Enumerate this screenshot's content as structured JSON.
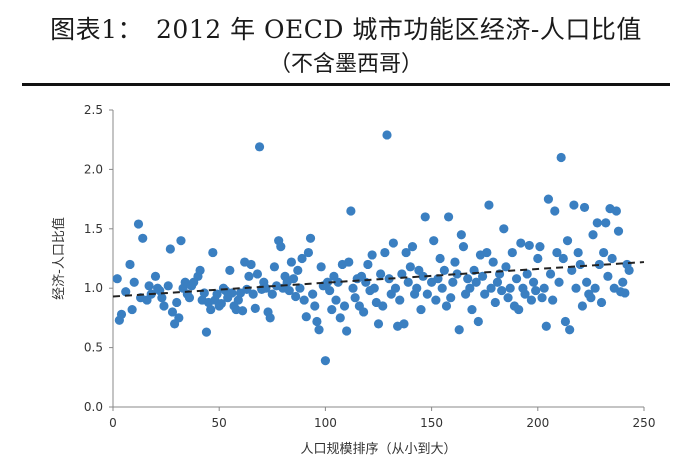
{
  "header": {
    "title": "图表1：　2012 年 OECD 城市功能区经济-人口比值",
    "subtitle": "（不含墨西哥）"
  },
  "chart_data": {
    "type": "scatter",
    "xlabel": "人口规模排序（从小到大）",
    "ylabel": "经济-人口比值",
    "xlim": [
      0,
      250
    ],
    "ylim": [
      0,
      2.5
    ],
    "xticks": [
      "0",
      "50",
      "100",
      "150",
      "200",
      "250"
    ],
    "yticks": [
      "0.0",
      "0.5",
      "1.0",
      "1.5",
      "2.0",
      "2.5"
    ],
    "grid": false,
    "legend": "none",
    "colors": {
      "points": "#3a7fc1",
      "trend": "#222222",
      "axis": "#888888"
    },
    "trendline": {
      "style": "dashed",
      "x": [
        0,
        250
      ],
      "y": [
        0.93,
        1.22
      ]
    },
    "points": [
      [
        2,
        1.08
      ],
      [
        3,
        0.73
      ],
      [
        4,
        0.78
      ],
      [
        6,
        0.97
      ],
      [
        8,
        1.2
      ],
      [
        9,
        0.82
      ],
      [
        10,
        1.05
      ],
      [
        12,
        1.54
      ],
      [
        13,
        0.92
      ],
      [
        14,
        1.42
      ],
      [
        16,
        0.9
      ],
      [
        17,
        1.02
      ],
      [
        18,
        0.95
      ],
      [
        20,
        1.1
      ],
      [
        21,
        1.0
      ],
      [
        22,
        0.98
      ],
      [
        23,
        0.92
      ],
      [
        24,
        0.85
      ],
      [
        26,
        1.02
      ],
      [
        27,
        1.33
      ],
      [
        28,
        0.8
      ],
      [
        29,
        0.7
      ],
      [
        30,
        0.88
      ],
      [
        31,
        0.75
      ],
      [
        32,
        1.4
      ],
      [
        33,
        1.0
      ],
      [
        34,
        1.05
      ],
      [
        35,
        0.95
      ],
      [
        36,
        0.92
      ],
      [
        37,
        1.02
      ],
      [
        38,
        1.05
      ],
      [
        40,
        1.1
      ],
      [
        41,
        1.15
      ],
      [
        42,
        0.9
      ],
      [
        43,
        0.96
      ],
      [
        44,
        0.63
      ],
      [
        45,
        0.88
      ],
      [
        46,
        0.82
      ],
      [
        47,
        1.3
      ],
      [
        48,
        0.9
      ],
      [
        49,
        0.95
      ],
      [
        50,
        0.85
      ],
      [
        51,
        0.87
      ],
      [
        52,
        1.0
      ],
      [
        53,
        0.98
      ],
      [
        54,
        0.92
      ],
      [
        55,
        1.15
      ],
      [
        56,
        0.96
      ],
      [
        57,
        0.85
      ],
      [
        58,
        0.82
      ],
      [
        59,
        0.9
      ],
      [
        60,
        0.96
      ],
      [
        61,
        0.81
      ],
      [
        62,
        1.22
      ],
      [
        63,
        0.99
      ],
      [
        64,
        1.1
      ],
      [
        65,
        1.2
      ],
      [
        66,
        0.95
      ],
      [
        67,
        0.83
      ],
      [
        68,
        1.12
      ],
      [
        69,
        2.19
      ],
      [
        70,
        0.99
      ],
      [
        71,
        1.05
      ],
      [
        72,
        1.0
      ],
      [
        73,
        0.8
      ],
      [
        74,
        0.75
      ],
      [
        75,
        0.95
      ],
      [
        76,
        1.18
      ],
      [
        77,
        1.02
      ],
      [
        78,
        1.4
      ],
      [
        79,
        1.35
      ],
      [
        80,
        1.0
      ],
      [
        81,
        1.1
      ],
      [
        82,
        1.05
      ],
      [
        83,
        0.98
      ],
      [
        84,
        1.22
      ],
      [
        85,
        1.08
      ],
      [
        86,
        0.93
      ],
      [
        87,
        1.15
      ],
      [
        88,
        1.0
      ],
      [
        89,
        1.25
      ],
      [
        90,
        0.9
      ],
      [
        91,
        0.76
      ],
      [
        92,
        1.3
      ],
      [
        93,
        1.42
      ],
      [
        94,
        0.95
      ],
      [
        95,
        0.85
      ],
      [
        96,
        0.72
      ],
      [
        97,
        0.65
      ],
      [
        98,
        1.18
      ],
      [
        99,
        1.02
      ],
      [
        100,
        0.39
      ],
      [
        101,
        1.05
      ],
      [
        102,
        0.98
      ],
      [
        103,
        0.82
      ],
      [
        104,
        1.1
      ],
      [
        105,
        0.9
      ],
      [
        106,
        1.05
      ],
      [
        107,
        0.75
      ],
      [
        108,
        1.2
      ],
      [
        109,
        0.85
      ],
      [
        110,
        0.64
      ],
      [
        111,
        1.22
      ],
      [
        112,
        1.65
      ],
      [
        113,
        1.0
      ],
      [
        114,
        0.92
      ],
      [
        115,
        1.08
      ],
      [
        116,
        0.85
      ],
      [
        117,
        1.1
      ],
      [
        118,
        0.8
      ],
      [
        119,
        1.05
      ],
      [
        120,
        1.2
      ],
      [
        121,
        0.98
      ],
      [
        122,
        1.28
      ],
      [
        123,
        1.0
      ],
      [
        124,
        0.88
      ],
      [
        125,
        0.7
      ],
      [
        126,
        1.12
      ],
      [
        127,
        0.85
      ],
      [
        128,
        1.3
      ],
      [
        129,
        2.29
      ],
      [
        130,
        1.08
      ],
      [
        131,
        0.95
      ],
      [
        132,
        1.38
      ],
      [
        133,
        1.0
      ],
      [
        134,
        0.68
      ],
      [
        135,
        0.9
      ],
      [
        136,
        1.12
      ],
      [
        137,
        0.7
      ],
      [
        138,
        1.3
      ],
      [
        139,
        1.05
      ],
      [
        140,
        1.18
      ],
      [
        141,
        1.35
      ],
      [
        142,
        0.95
      ],
      [
        143,
        1.0
      ],
      [
        144,
        1.15
      ],
      [
        145,
        0.82
      ],
      [
        146,
        1.1
      ],
      [
        147,
        1.6
      ],
      [
        148,
        0.95
      ],
      [
        150,
        1.05
      ],
      [
        151,
        1.4
      ],
      [
        152,
        0.9
      ],
      [
        153,
        1.08
      ],
      [
        154,
        1.25
      ],
      [
        155,
        1.0
      ],
      [
        156,
        1.15
      ],
      [
        157,
        0.85
      ],
      [
        158,
        1.6
      ],
      [
        159,
        0.92
      ],
      [
        160,
        1.05
      ],
      [
        161,
        1.22
      ],
      [
        162,
        1.12
      ],
      [
        163,
        0.65
      ],
      [
        164,
        1.45
      ],
      [
        165,
        1.35
      ],
      [
        166,
        0.95
      ],
      [
        167,
        1.08
      ],
      [
        168,
        1.0
      ],
      [
        169,
        0.82
      ],
      [
        170,
        1.15
      ],
      [
        171,
        1.05
      ],
      [
        172,
        0.72
      ],
      [
        173,
        1.28
      ],
      [
        174,
        1.1
      ],
      [
        175,
        0.95
      ],
      [
        176,
        1.3
      ],
      [
        177,
        1.7
      ],
      [
        178,
        1.0
      ],
      [
        179,
        1.22
      ],
      [
        180,
        0.88
      ],
      [
        181,
        1.05
      ],
      [
        182,
        1.12
      ],
      [
        183,
        0.98
      ],
      [
        184,
        1.5
      ],
      [
        185,
        1.18
      ],
      [
        186,
        0.92
      ],
      [
        187,
        1.0
      ],
      [
        188,
        1.3
      ],
      [
        189,
        0.85
      ],
      [
        190,
        1.08
      ],
      [
        191,
        0.82
      ],
      [
        192,
        1.38
      ],
      [
        193,
        1.0
      ],
      [
        194,
        0.95
      ],
      [
        195,
        1.12
      ],
      [
        196,
        1.36
      ],
      [
        197,
        0.9
      ],
      [
        198,
        1.05
      ],
      [
        199,
        0.98
      ],
      [
        200,
        1.25
      ],
      [
        201,
        1.35
      ],
      [
        202,
        0.92
      ],
      [
        203,
        1.0
      ],
      [
        204,
        0.68
      ],
      [
        205,
        1.75
      ],
      [
        206,
        1.12
      ],
      [
        207,
        0.9
      ],
      [
        208,
        1.65
      ],
      [
        209,
        1.3
      ],
      [
        210,
        1.05
      ],
      [
        211,
        2.1
      ],
      [
        212,
        1.25
      ],
      [
        213,
        0.72
      ],
      [
        214,
        1.4
      ],
      [
        215,
        0.65
      ],
      [
        216,
        1.15
      ],
      [
        217,
        1.7
      ],
      [
        218,
        1.0
      ],
      [
        219,
        1.3
      ],
      [
        220,
        1.2
      ],
      [
        221,
        0.85
      ],
      [
        222,
        1.68
      ],
      [
        223,
        1.05
      ],
      [
        224,
        0.95
      ],
      [
        225,
        0.92
      ],
      [
        226,
        1.45
      ],
      [
        227,
        1.0
      ],
      [
        228,
        1.55
      ],
      [
        229,
        1.2
      ],
      [
        230,
        0.88
      ],
      [
        231,
        1.3
      ],
      [
        232,
        1.55
      ],
      [
        233,
        1.1
      ],
      [
        234,
        1.67
      ],
      [
        235,
        1.25
      ],
      [
        236,
        1.0
      ],
      [
        237,
        1.65
      ],
      [
        238,
        1.48
      ],
      [
        239,
        0.97
      ],
      [
        240,
        1.05
      ],
      [
        241,
        0.96
      ],
      [
        242,
        1.2
      ],
      [
        243,
        1.15
      ]
    ]
  }
}
